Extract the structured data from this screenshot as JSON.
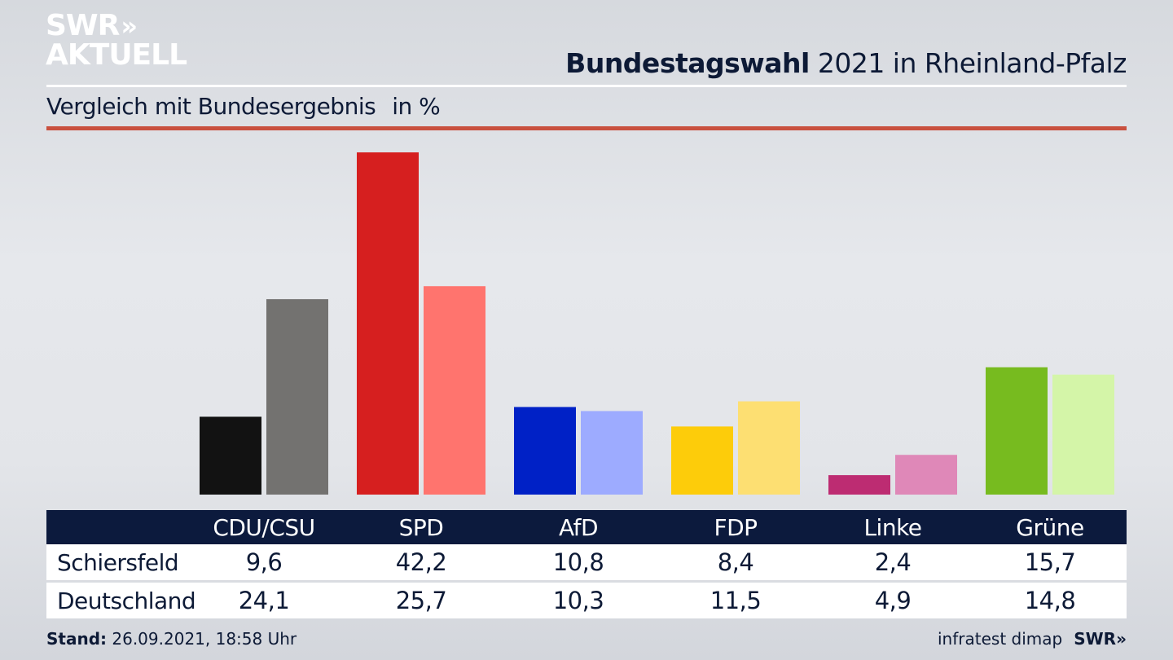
{
  "logo": {
    "line1": "SWR",
    "chevrons": "»",
    "line2": "AKTUELL"
  },
  "header": {
    "title_bold": "Bundestagswahl",
    "title_rest": "2021 in Rheinland-Pfalz",
    "subtitle": "Vergleich mit Bundesergebnis",
    "unit": "in %"
  },
  "chart_data": {
    "type": "bar",
    "title": "Bundestagswahl 2021 in Rheinland-Pfalz",
    "subtitle": "Vergleich mit Bundesergebnis in %",
    "xlabel": "",
    "ylabel": "in %",
    "ylim": [
      0,
      42.2
    ],
    "grid": false,
    "legend": "table-below",
    "categories": [
      "CDU/CSU",
      "SPD",
      "AfD",
      "FDP",
      "Linke",
      "Grüne"
    ],
    "series": [
      {
        "name": "Schiersfeld",
        "values": [
          9.6,
          42.2,
          10.8,
          8.4,
          2.4,
          15.7
        ],
        "labels": [
          "9,6",
          "42,2",
          "10,8",
          "8,4",
          "2,4",
          "15,7"
        ],
        "colors": [
          "#121212",
          "#d61f1f",
          "#0021c6",
          "#fdcc0a",
          "#bd2c72",
          "#77bb1f"
        ]
      },
      {
        "name": "Deutschland",
        "values": [
          24.1,
          25.7,
          10.3,
          11.5,
          4.9,
          14.8
        ],
        "labels": [
          "24,1",
          "25,7",
          "10,3",
          "11,5",
          "4,9",
          "14,8"
        ],
        "colors": [
          "#737270",
          "#ff746e",
          "#9dabff",
          "#fddf72",
          "#df88b8",
          "#d4f5a8"
        ]
      }
    ]
  },
  "table": {
    "headers": [
      "CDU/CSU",
      "SPD",
      "AfD",
      "FDP",
      "Linke",
      "Grüne"
    ],
    "rows": [
      {
        "label": "Schiersfeld",
        "values": [
          "9,6",
          "42,2",
          "10,8",
          "8,4",
          "2,4",
          "15,7"
        ]
      },
      {
        "label": "Deutschland",
        "values": [
          "24,1",
          "25,7",
          "10,3",
          "11,5",
          "4,9",
          "14,8"
        ]
      }
    ]
  },
  "footer": {
    "stand_label": "Stand:",
    "stand_value": "26.09.2021, 18:58 Uhr",
    "source": "infratest dimap",
    "brand": "SWR»"
  },
  "colors": {
    "navy": "#0c1a3d",
    "accent_red": "#c9503e"
  }
}
